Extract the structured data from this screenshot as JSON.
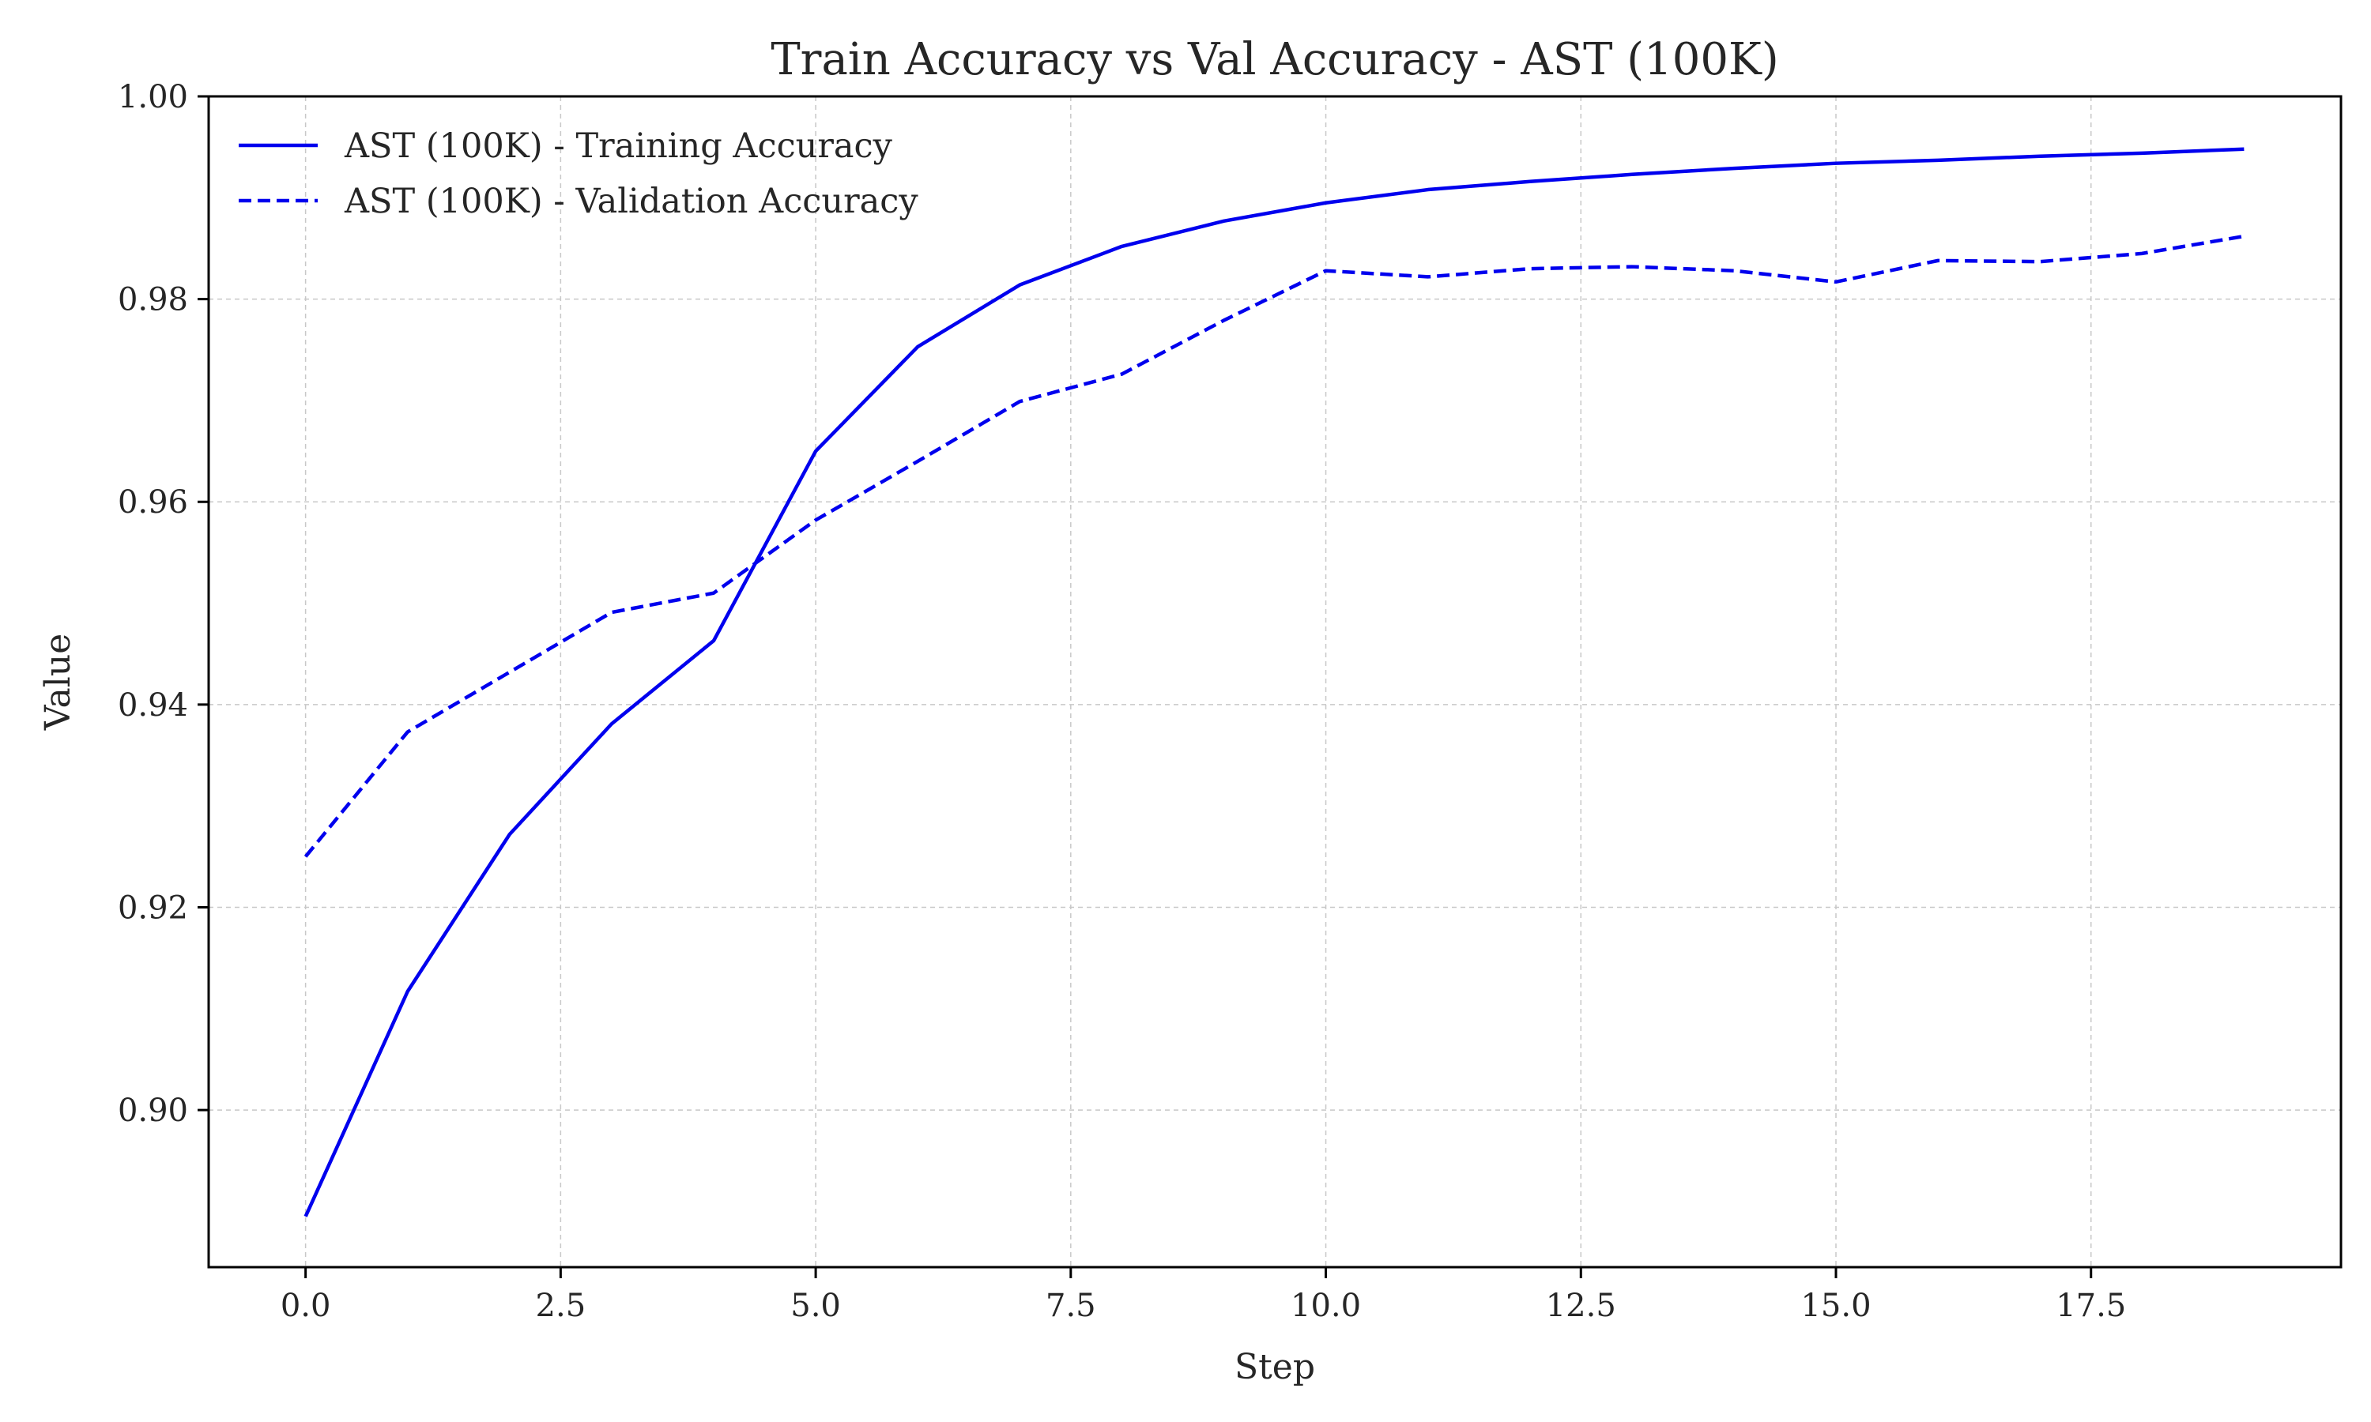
{
  "chart_data": {
    "type": "line",
    "title": "Train Accuracy vs Val Accuracy - AST (100K)",
    "xlabel": "Step",
    "ylabel": "Value",
    "xlim": [
      -0.95,
      19.95
    ],
    "ylim": [
      0.8845,
      1.0
    ],
    "xticks": [
      0.0,
      2.5,
      5.0,
      7.5,
      10.0,
      12.5,
      15.0,
      17.5
    ],
    "xtick_labels": [
      "0.0",
      "2.5",
      "5.0",
      "7.5",
      "10.0",
      "12.5",
      "15.0",
      "17.5"
    ],
    "yticks": [
      0.9,
      0.92,
      0.94,
      0.96,
      0.98,
      1.0
    ],
    "ytick_labels": [
      "0.90",
      "0.92",
      "0.94",
      "0.96",
      "0.98",
      "1.00"
    ],
    "grid": true,
    "legend_position": "top-left",
    "x": [
      0,
      1,
      2,
      3,
      4,
      5,
      6,
      7,
      8,
      9,
      10,
      11,
      12,
      13,
      14,
      15,
      16,
      17,
      18,
      19
    ],
    "series": [
      {
        "name": "AST (100K) - Training Accuracy",
        "style": "solid",
        "color": "#0000ee",
        "values": [
          0.8895,
          0.9117,
          0.9272,
          0.9381,
          0.9463,
          0.965,
          0.9753,
          0.9814,
          0.9852,
          0.9877,
          0.9895,
          0.9908,
          0.9916,
          0.9923,
          0.9929,
          0.9934,
          0.9937,
          0.9941,
          0.9944,
          0.9948
        ]
      },
      {
        "name": "AST (100K) - Validation Accuracy",
        "style": "dashed",
        "color": "#0000ee",
        "values": [
          0.925,
          0.9373,
          0.9432,
          0.9491,
          0.951,
          0.9582,
          0.964,
          0.9699,
          0.9726,
          0.9779,
          0.9828,
          0.9822,
          0.983,
          0.9832,
          0.9828,
          0.9817,
          0.9838,
          0.9837,
          0.9845,
          0.9862
        ]
      }
    ]
  }
}
